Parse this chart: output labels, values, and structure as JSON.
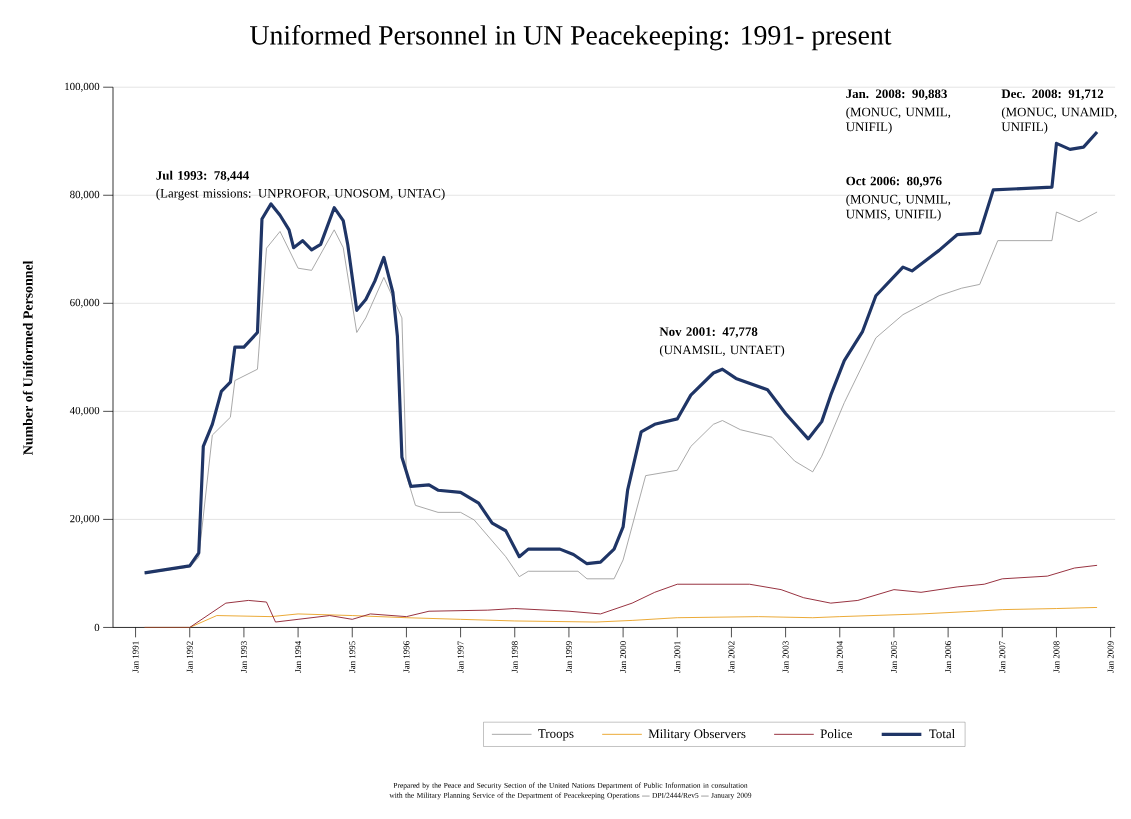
{
  "chart_data": {
    "type": "line",
    "title": "Uniformed Personnel in UN Peacekeeping: 1991- present",
    "ylabel": "Number of Uniformed Personnel",
    "xlim": [
      "1990-08",
      "2009-02"
    ],
    "ylim": [
      0,
      100000
    ],
    "xticks": [
      {
        "value": "1991-01",
        "label": "Jan 1991"
      },
      {
        "value": "1992-01",
        "label": "Jan 1992"
      },
      {
        "value": "1993-01",
        "label": "Jan 1993"
      },
      {
        "value": "1994-01",
        "label": "Jan 1994"
      },
      {
        "value": "1995-01",
        "label": "Jan 1995"
      },
      {
        "value": "1996-01",
        "label": "Jan 1996"
      },
      {
        "value": "1997-01",
        "label": "Jan 1997"
      },
      {
        "value": "1998-01",
        "label": "Jan 1998"
      },
      {
        "value": "1999-01",
        "label": "Jan 1999"
      },
      {
        "value": "2000-01",
        "label": "Jan 2000"
      },
      {
        "value": "2001-01",
        "label": "Jan 2001"
      },
      {
        "value": "2002-01",
        "label": "Jan 2002"
      },
      {
        "value": "2003-01",
        "label": "Jan 2003"
      },
      {
        "value": "2004-01",
        "label": "Jan 2004"
      },
      {
        "value": "2005-01",
        "label": "Jan 2005"
      },
      {
        "value": "2006-01",
        "label": "Jan 2006"
      },
      {
        "value": "2007-01",
        "label": "Jan 2007"
      },
      {
        "value": "2008-01",
        "label": "Jan 2008"
      },
      {
        "value": "2009-01",
        "label": "Jan 2009"
      }
    ],
    "yticks": [
      {
        "value": 0,
        "label": "0"
      },
      {
        "value": 20000,
        "label": "20,000"
      },
      {
        "value": 40000,
        "label": "40,000"
      },
      {
        "value": 60000,
        "label": "60,000"
      },
      {
        "value": 80000,
        "label": "80,000"
      },
      {
        "value": 100000,
        "label": "100,000"
      }
    ],
    "grid": "y",
    "legend": "bottom",
    "marker": "none",
    "line_style": "solid",
    "series": [
      {
        "name": "Troops",
        "color": "#9e9e9e",
        "x": [
          "1991-03",
          "1992-01",
          "1992-03",
          "1992-06",
          "1992-10",
          "1992-11",
          "1993-04",
          "1993-06",
          "1993-09",
          "1994-01",
          "1994-04",
          "1994-09",
          "1994-11",
          "1995-02",
          "1995-04",
          "1995-08",
          "1995-12",
          "1996-01",
          "1996-03",
          "1996-08",
          "1997-01",
          "1997-04",
          "1997-11",
          "1998-02",
          "1998-04",
          "1999-03",
          "1999-05",
          "1999-11",
          "2000-01",
          "2000-06",
          "2001-01",
          "2001-04",
          "2001-09",
          "2001-11",
          "2002-03",
          "2002-10",
          "2003-03",
          "2003-07",
          "2003-09",
          "2004-02",
          "2004-09",
          "2005-03",
          "2005-11",
          "2006-04",
          "2006-08",
          "2006-12",
          "2007-12",
          "2008-01",
          "2008-06",
          "2008-10"
        ],
        "values": [
          10000,
          11200,
          13000,
          35600,
          38900,
          45700,
          47800,
          70200,
          73300,
          66500,
          66100,
          73600,
          70300,
          54600,
          57300,
          64800,
          57300,
          28100,
          22600,
          21300,
          21300,
          19900,
          13100,
          9400,
          10400,
          10400,
          9000,
          9000,
          12500,
          28100,
          29100,
          33500,
          37600,
          38300,
          36600,
          35200,
          30800,
          28800,
          31700,
          41600,
          53600,
          57900,
          61400,
          62800,
          63500,
          71600,
          71600,
          76900,
          75100,
          76900
        ]
      },
      {
        "name": "Military Observers",
        "color": "#e8a020",
        "x": [
          "1991-03",
          "1992-01",
          "1992-07",
          "1993-07",
          "1994-01",
          "1995-01",
          "1996-01",
          "1997-01",
          "1998-01",
          "1999-07",
          "2000-03",
          "2001-01",
          "2002-07",
          "2003-07",
          "2004-01",
          "2005-07",
          "2006-07",
          "2007-01",
          "2008-01",
          "2008-10"
        ],
        "values": [
          0,
          0,
          2200,
          2000,
          2500,
          2200,
          1800,
          1500,
          1200,
          1000,
          1300,
          1800,
          2000,
          1800,
          2000,
          2500,
          3000,
          3300,
          3500,
          3700
        ]
      },
      {
        "name": "Police",
        "color": "#8b1a2a",
        "x": [
          "1991-03",
          "1992-01",
          "1992-09",
          "1993-02",
          "1993-06",
          "1993-08",
          "1994-01",
          "1994-08",
          "1995-01",
          "1995-05",
          "1996-01",
          "1996-06",
          "1997-07",
          "1998-01",
          "1999-01",
          "1999-08",
          "2000-03",
          "2000-08",
          "2001-01",
          "2002-05",
          "2002-12",
          "2003-05",
          "2003-11",
          "2004-05",
          "2005-01",
          "2005-07",
          "2006-03",
          "2006-09",
          "2007-01",
          "2007-11",
          "2008-01",
          "2008-05",
          "2008-10"
        ],
        "values": [
          0,
          0,
          4500,
          5000,
          4700,
          1000,
          1500,
          2200,
          1500,
          2500,
          2000,
          3000,
          3200,
          3500,
          3000,
          2500,
          4500,
          6500,
          8000,
          8000,
          7000,
          5500,
          4500,
          5000,
          7000,
          6500,
          7500,
          8000,
          9000,
          9500,
          10000,
          11000,
          11500
        ]
      },
      {
        "name": "Total",
        "color": "#1f3566",
        "x": [
          "1991-03",
          "1992-01",
          "1992-03",
          "1992-04",
          "1992-06",
          "1992-08",
          "1992-10",
          "1992-11",
          "1993-01",
          "1993-04",
          "1993-05",
          "1993-07",
          "1993-09",
          "1993-11",
          "1993-12",
          "1994-02",
          "1994-04",
          "1994-06",
          "1994-09",
          "1994-11",
          "1994-12",
          "1995-02",
          "1995-04",
          "1995-06",
          "1995-08",
          "1995-10",
          "1995-11",
          "1995-12",
          "1996-02",
          "1996-06",
          "1996-08",
          "1997-01",
          "1997-05",
          "1997-08",
          "1997-11",
          "1998-02",
          "1998-04",
          "1998-11",
          "1999-02",
          "1999-05",
          "1999-08",
          "1999-11",
          "2000-01",
          "2000-02",
          "2000-05",
          "2000-08",
          "2001-01",
          "2001-04",
          "2001-09",
          "2001-11",
          "2002-02",
          "2002-09",
          "2003-01",
          "2003-06",
          "2003-09",
          "2003-11",
          "2004-02",
          "2004-06",
          "2004-09",
          "2005-03",
          "2005-05",
          "2005-11",
          "2006-03",
          "2006-08",
          "2006-11",
          "2007-12",
          "2008-01",
          "2008-04",
          "2008-07",
          "2008-10"
        ],
        "values": [
          10100,
          11400,
          13800,
          33500,
          37600,
          43700,
          45400,
          51900,
          51900,
          54600,
          75600,
          78400,
          76300,
          73600,
          70300,
          71600,
          69900,
          70900,
          77700,
          75300,
          70900,
          58700,
          60700,
          64100,
          68500,
          62000,
          53900,
          31500,
          26100,
          26400,
          25400,
          25000,
          23000,
          19300,
          17900,
          13100,
          14500,
          14500,
          13500,
          11800,
          12100,
          14500,
          18600,
          25400,
          36200,
          37600,
          38600,
          43000,
          47100,
          47800,
          46100,
          44000,
          39600,
          34900,
          38100,
          43000,
          49400,
          54700,
          61400,
          66700,
          66000,
          69800,
          72700,
          73000,
          81000,
          81500,
          89600,
          88500,
          88900,
          91700
        ]
      }
    ],
    "annotations": [
      "Prepared by the Peace and Security Section of the United Nations Department of Public Information in consultation with the Military Planning Service of the Department of Peacekeeping Operations — DPI/2444/Rev5 — January 2009",
      "Jul 1993: 78,444",
      "(Largest missions: UNPROFOR, UNOSOM, UNTAC)",
      "Nov 2001: 47,778",
      "(UNAMSIL, UNTAET)",
      "Oct 2006: 80,976",
      "(MONUC, UNMIL, UNMIS, UNIFIL)",
      "Jan. 2008: 90,883",
      "(MONUC, UNMIL, UNIFIL)",
      "Dec. 2008: 91,712",
      "(MONUC, UNAMID, UNIFIL)"
    ]
  }
}
